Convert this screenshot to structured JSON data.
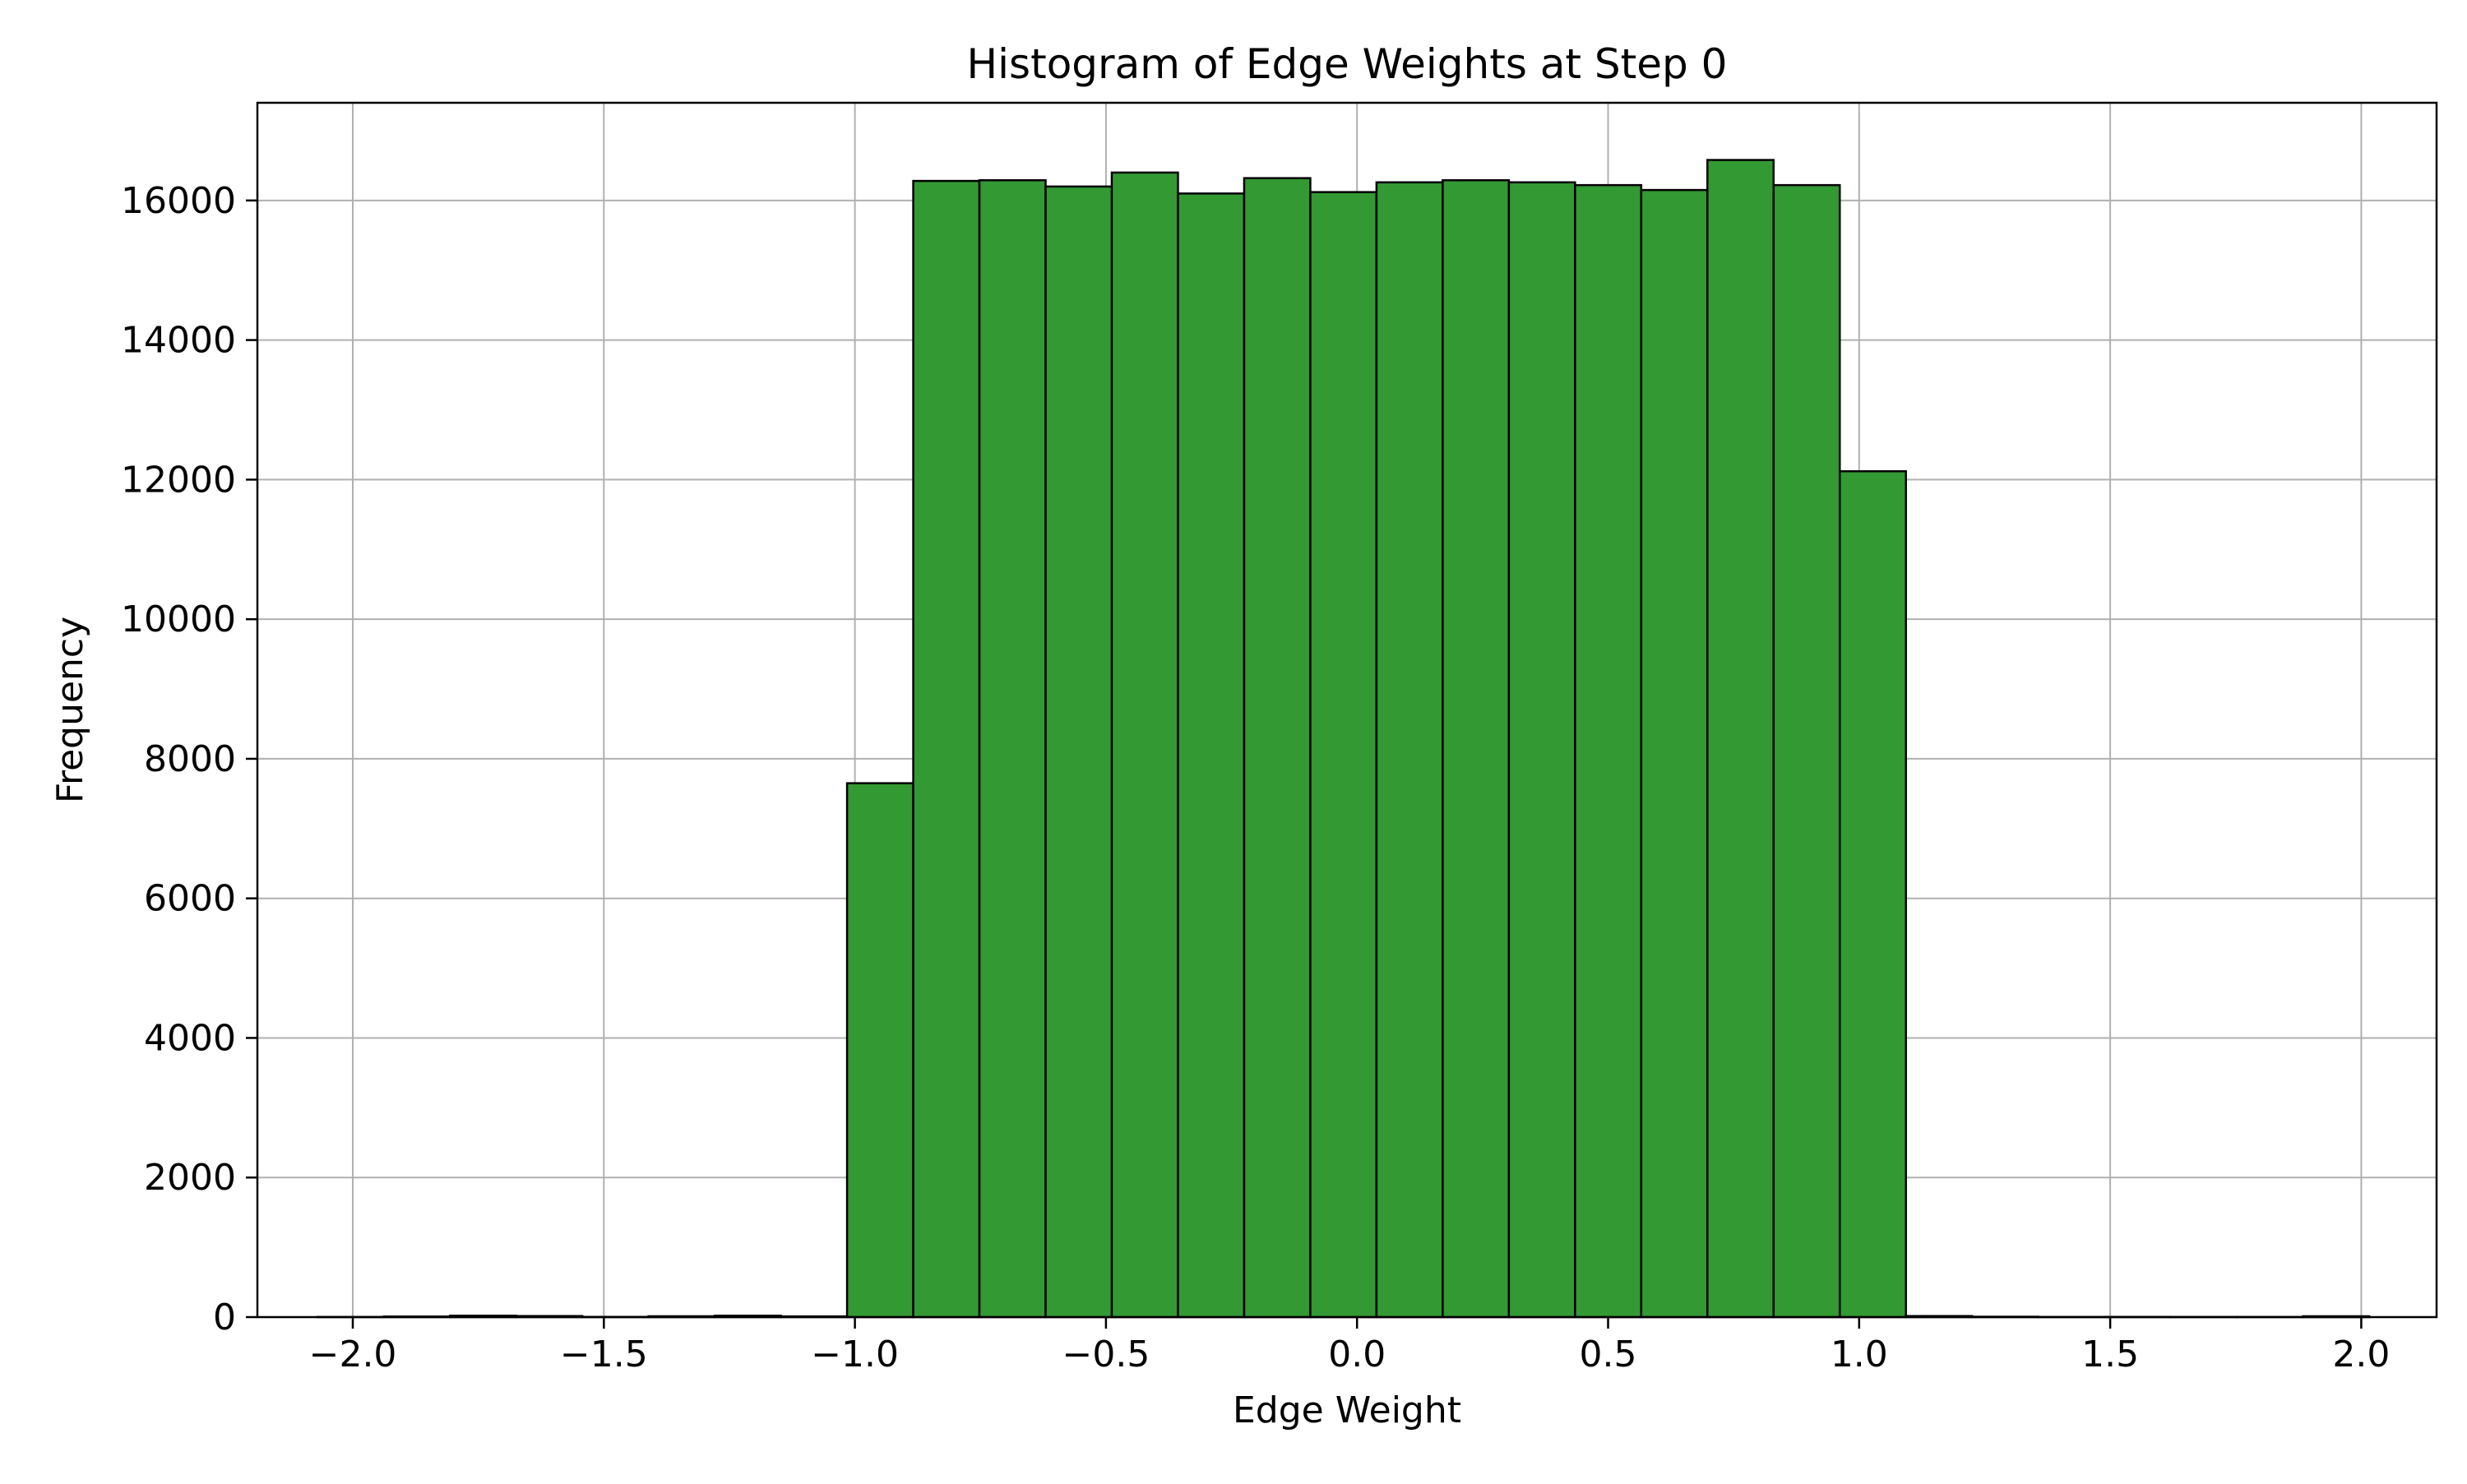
{
  "chart_data": {
    "type": "bar",
    "title": "Histogram of Edge Weights at Step 0",
    "xlabel": "Edge Weight",
    "ylabel": "Frequency",
    "xlim": [
      -2.19,
      2.15
    ],
    "ylim": [
      0,
      17400
    ],
    "x_ticks": [
      -2.0,
      -1.5,
      -1.0,
      -0.5,
      0.0,
      0.5,
      1.0,
      1.5,
      2.0
    ],
    "x_tick_labels": [
      "−2.0",
      "−1.5",
      "−1.0",
      "−0.5",
      "0.0",
      "0.5",
      "1.0",
      "1.5",
      "2.0"
    ],
    "y_ticks": [
      0,
      2000,
      4000,
      6000,
      8000,
      10000,
      12000,
      14000,
      16000
    ],
    "y_tick_labels": [
      "0",
      "2000",
      "4000",
      "6000",
      "8000",
      "10000",
      "12000",
      "14000",
      "16000"
    ],
    "grid": true,
    "bar_color": "#339933",
    "edge_color": "#000000",
    "bin_start": -2.07,
    "bin_width": 0.1318,
    "values": [
      2,
      8,
      20,
      15,
      3,
      12,
      20,
      10,
      7650,
      16280,
      16290,
      16200,
      16400,
      16100,
      16320,
      16120,
      16260,
      16290,
      16260,
      16220,
      16150,
      16580,
      16220,
      12120,
      15,
      5,
      2,
      3,
      2,
      2,
      12
    ]
  }
}
